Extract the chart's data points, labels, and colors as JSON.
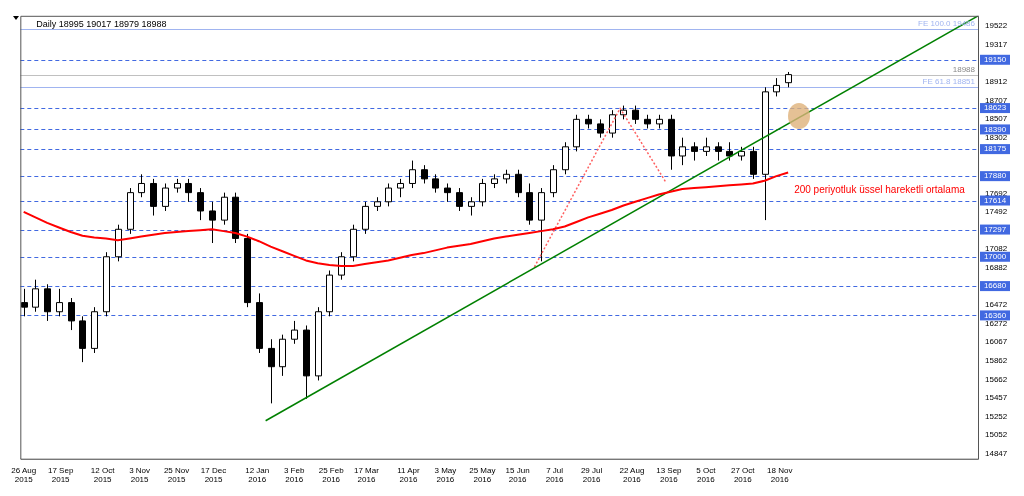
{
  "chart_data": {
    "type": "candlestick",
    "title": "Daily 18995 19017 18979 18988",
    "x": [
      "2015-08-26",
      "2015-09-02",
      "2015-09-09",
      "2015-09-16",
      "2015-09-23",
      "2015-09-30",
      "2015-10-07",
      "2015-10-14",
      "2015-10-21",
      "2015-10-28",
      "2015-11-04",
      "2015-11-11",
      "2015-11-18",
      "2015-11-25",
      "2015-12-02",
      "2015-12-09",
      "2015-12-16",
      "2015-12-23",
      "2015-12-30",
      "2016-01-06",
      "2016-01-13",
      "2016-01-20",
      "2016-01-27",
      "2016-02-03",
      "2016-02-10",
      "2016-02-17",
      "2016-02-24",
      "2016-03-02",
      "2016-03-09",
      "2016-03-16",
      "2016-03-23",
      "2016-03-30",
      "2016-04-06",
      "2016-04-13",
      "2016-04-20",
      "2016-04-27",
      "2016-05-04",
      "2016-05-11",
      "2016-05-18",
      "2016-05-25",
      "2016-06-01",
      "2016-06-08",
      "2016-06-15",
      "2016-06-22",
      "2016-06-29",
      "2016-07-06",
      "2016-07-13",
      "2016-07-20",
      "2016-07-27",
      "2016-08-03",
      "2016-08-10",
      "2016-08-17",
      "2016-08-24",
      "2016-08-31",
      "2016-09-07",
      "2016-09-14",
      "2016-09-21",
      "2016-09-28",
      "2016-10-05",
      "2016-10-12",
      "2016-10-19",
      "2016-10-26",
      "2016-11-02",
      "2016-11-09",
      "2016-11-16",
      "2016-11-23"
    ],
    "ohlc": [
      [
        16500,
        16650,
        16350,
        16450
      ],
      [
        16450,
        16750,
        16400,
        16650
      ],
      [
        16650,
        16700,
        16300,
        16400
      ],
      [
        16400,
        16650,
        16350,
        16500
      ],
      [
        16500,
        16550,
        16200,
        16300
      ],
      [
        16300,
        16350,
        15850,
        16000
      ],
      [
        16000,
        16450,
        15950,
        16400
      ],
      [
        16400,
        17050,
        16350,
        17000
      ],
      [
        17000,
        17350,
        16950,
        17300
      ],
      [
        17300,
        17750,
        17250,
        17700
      ],
      [
        17700,
        17900,
        17650,
        17800
      ],
      [
        17800,
        17850,
        17450,
        17550
      ],
      [
        17550,
        17800,
        17500,
        17750
      ],
      [
        17750,
        17850,
        17700,
        17800
      ],
      [
        17800,
        17850,
        17600,
        17700
      ],
      [
        17700,
        17750,
        17400,
        17500
      ],
      [
        17500,
        17600,
        17150,
        17400
      ],
      [
        17400,
        17700,
        17350,
        17650
      ],
      [
        17650,
        17700,
        17150,
        17200
      ],
      [
        17200,
        17250,
        16450,
        16500
      ],
      [
        16500,
        16600,
        15950,
        16000
      ],
      [
        16000,
        16100,
        15400,
        15800
      ],
      [
        15800,
        16150,
        15700,
        16100
      ],
      [
        16100,
        16300,
        16050,
        16200
      ],
      [
        16200,
        16250,
        15450,
        15700
      ],
      [
        15700,
        16450,
        15650,
        16400
      ],
      [
        16400,
        16850,
        16350,
        16800
      ],
      [
        16800,
        17050,
        16750,
        17000
      ],
      [
        17000,
        17350,
        16950,
        17300
      ],
      [
        17300,
        17600,
        17250,
        17550
      ],
      [
        17550,
        17650,
        17500,
        17600
      ],
      [
        17600,
        17800,
        17550,
        17750
      ],
      [
        17750,
        17850,
        17650,
        17800
      ],
      [
        17800,
        18050,
        17750,
        17950
      ],
      [
        17950,
        18000,
        17800,
        17850
      ],
      [
        17850,
        17900,
        17700,
        17750
      ],
      [
        17750,
        17800,
        17600,
        17700
      ],
      [
        17700,
        17750,
        17500,
        17550
      ],
      [
        17550,
        17650,
        17450,
        17600
      ],
      [
        17600,
        17850,
        17550,
        17800
      ],
      [
        17800,
        17900,
        17750,
        17850
      ],
      [
        17850,
        17950,
        17800,
        17900
      ],
      [
        17900,
        17950,
        17650,
        17700
      ],
      [
        17700,
        17800,
        17350,
        17400
      ],
      [
        17400,
        17750,
        16950,
        17700
      ],
      [
        17700,
        18000,
        17650,
        17950
      ],
      [
        17950,
        18250,
        17900,
        18200
      ],
      [
        18200,
        18550,
        18150,
        18500
      ],
      [
        18500,
        18550,
        18400,
        18450
      ],
      [
        18450,
        18500,
        18300,
        18350
      ],
      [
        18350,
        18600,
        18300,
        18550
      ],
      [
        18550,
        18650,
        18500,
        18600
      ],
      [
        18600,
        18650,
        18450,
        18500
      ],
      [
        18500,
        18550,
        18400,
        18450
      ],
      [
        18450,
        18550,
        18400,
        18500
      ],
      [
        18500,
        18550,
        17950,
        18100
      ],
      [
        18100,
        18300,
        18000,
        18200
      ],
      [
        18200,
        18250,
        18050,
        18150
      ],
      [
        18150,
        18300,
        18100,
        18200
      ],
      [
        18200,
        18250,
        18050,
        18150
      ],
      [
        18150,
        18250,
        18050,
        18100
      ],
      [
        18100,
        18200,
        18050,
        18150
      ],
      [
        18150,
        18200,
        17850,
        17900
      ],
      [
        17900,
        18850,
        17400,
        18800
      ],
      [
        18800,
        18950,
        18750,
        18870
      ],
      [
        18900,
        19017,
        18850,
        18988
      ]
    ],
    "series": [
      {
        "type": "line",
        "name": "200 periyotluk üssel hareketli ortalama",
        "color": "#ff0000",
        "values": [
          17490,
          17430,
          17370,
          17320,
          17270,
          17230,
          17210,
          17200,
          17180,
          17200,
          17220,
          17240,
          17260,
          17270,
          17280,
          17290,
          17300,
          17280,
          17260,
          17220,
          17170,
          17110,
          17060,
          17010,
          16960,
          16930,
          16910,
          16900,
          16900,
          16920,
          16940,
          16960,
          16990,
          17020,
          17040,
          17070,
          17100,
          17120,
          17140,
          17170,
          17200,
          17220,
          17240,
          17260,
          17280,
          17300,
          17330,
          17380,
          17430,
          17470,
          17510,
          17560,
          17600,
          17640,
          17680,
          17710,
          17740,
          17750,
          17760,
          17770,
          17780,
          17790,
          17800,
          17830,
          17880,
          17920
        ]
      },
      {
        "type": "line",
        "color": "#008000",
        "x": [
          "2016-01-17",
          "2017-03-16"
        ],
        "values": [
          15210,
          19630
        ]
      },
      {
        "type": "line",
        "color": "#ff6060",
        "line_style": "dotted",
        "x": [
          "2016-06-25",
          "2016-08-15",
          "2016-09-11"
        ],
        "values": [
          16890,
          18620,
          17820
        ]
      }
    ],
    "xlim": [
      "2015-08-24",
      "2017-03-16"
    ],
    "xticks": [
      {
        "value": "2015-08-26",
        "label": "26 Aug 2015"
      },
      {
        "value": "2015-09-17",
        "label": "17 Sep 2015"
      },
      {
        "value": "2015-10-12",
        "label": "12 Oct 2015"
      },
      {
        "value": "2015-11-03",
        "label": "3 Nov 2015"
      },
      {
        "value": "2015-11-25",
        "label": "25 Nov 2015"
      },
      {
        "value": "2015-12-17",
        "label": "17 Dec 2015"
      },
      {
        "value": "2016-01-12",
        "label": "12 Jan 2016"
      },
      {
        "value": "2016-02-03",
        "label": "3 Feb 2016"
      },
      {
        "value": "2016-02-25",
        "label": "25 Feb 2016"
      },
      {
        "value": "2016-03-17",
        "label": "17 Mar 2016"
      },
      {
        "value": "2016-04-11",
        "label": "11 Apr 2016"
      },
      {
        "value": "2016-05-03",
        "label": "3 May 2016"
      },
      {
        "value": "2016-05-25",
        "label": "25 May 2016"
      },
      {
        "value": "2016-06-15",
        "label": "15 Jun 2016"
      },
      {
        "value": "2016-07-07",
        "label": "7 Jul 2016"
      },
      {
        "value": "2016-07-29",
        "label": "29 Jul 2016"
      },
      {
        "value": "2016-08-22",
        "label": "22 Aug 2016"
      },
      {
        "value": "2016-09-13",
        "label": "13 Sep 2016"
      },
      {
        "value": "2016-10-05",
        "label": "5 Oct 2016"
      },
      {
        "value": "2016-10-27",
        "label": "27 Oct 2016"
      },
      {
        "value": "2016-11-18",
        "label": "18 Nov 2016"
      }
    ],
    "ylim": [
      14795,
      19630
    ],
    "yticks": [
      19522,
      19317,
      18912,
      18707,
      18507,
      18302,
      17692,
      17492,
      17082,
      16882,
      16472,
      16272,
      16067,
      15862,
      15662,
      15457,
      15252,
      15052,
      14847
    ],
    "ref_lines": [
      {
        "axis": "y",
        "value": 19486,
        "label": "FE 100.0 19486",
        "color": "#a0b4f0",
        "line_style": "solid"
      },
      {
        "axis": "y",
        "value": 18851,
        "label": "FE 61.8 18851",
        "color": "#a0b4f0",
        "line_style": "solid"
      },
      {
        "axis": "y",
        "value": 18988,
        "label": "18988",
        "color": "#c0c0c0",
        "line_style": "solid"
      },
      {
        "axis": "y",
        "value": 19150,
        "label": "19150",
        "color": "#4169e1",
        "line_style": "dashed"
      },
      {
        "axis": "y",
        "value": 18623,
        "label": "18623",
        "color": "#4169e1",
        "line_style": "dashed"
      },
      {
        "axis": "y",
        "value": 18390,
        "label": "18390",
        "color": "#4169e1",
        "line_style": "dashed"
      },
      {
        "axis": "y",
        "value": 18175,
        "label": "18175",
        "color": "#4169e1",
        "line_style": "dashed"
      },
      {
        "axis": "y",
        "value": 17880,
        "label": "17880",
        "color": "#4169e1",
        "line_style": "dashed"
      },
      {
        "axis": "y",
        "value": 17614,
        "label": "17614",
        "color": "#4169e1",
        "line_style": "dashed"
      },
      {
        "axis": "y",
        "value": 17297,
        "label": "17297",
        "color": "#4169e1",
        "line_style": "dashed"
      },
      {
        "axis": "y",
        "value": 17000,
        "label": "17000",
        "color": "#4169e1",
        "line_style": "dashed"
      },
      {
        "axis": "y",
        "value": 16680,
        "label": "16680",
        "color": "#4169e1",
        "line_style": "dashed"
      },
      {
        "axis": "y",
        "value": 16360,
        "label": "16360",
        "color": "#4169e1",
        "line_style": "dashed"
      }
    ],
    "marker": "none",
    "grid": false,
    "legend": false
  }
}
